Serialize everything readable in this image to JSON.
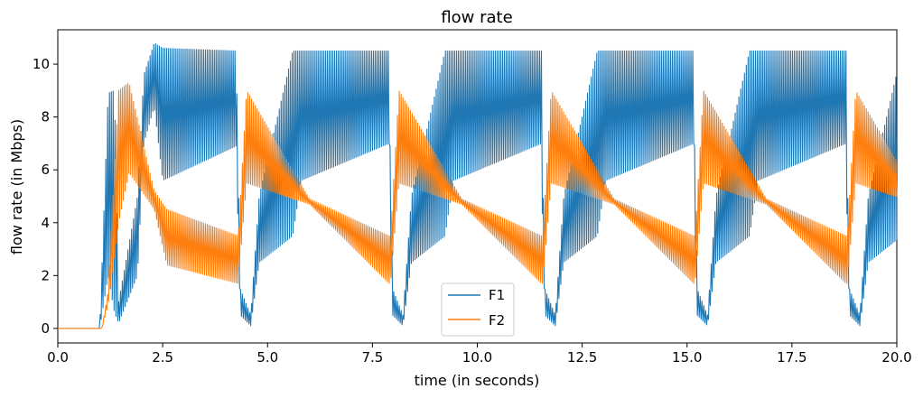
{
  "chart_data": {
    "type": "line",
    "title": "flow rate",
    "xlabel": "time (in seconds)",
    "ylabel": "flow rate (in Mbps)",
    "xlim": [
      0,
      20
    ],
    "ylim": [
      -0.55,
      11.3
    ],
    "xticks": [
      0,
      2.5,
      5,
      7.5,
      10,
      12.5,
      15,
      17.5,
      20
    ],
    "xtick_labels": [
      "0.0",
      "2.5",
      "5.0",
      "7.5",
      "10.0",
      "12.5",
      "15.0",
      "17.5",
      "20.0"
    ],
    "yticks": [
      0,
      2,
      4,
      6,
      8,
      10
    ],
    "ytick_labels": [
      "0",
      "2",
      "4",
      "6",
      "8",
      "10"
    ],
    "grid": false,
    "legend_position": "lower-center",
    "period_s": 3.63,
    "series": [
      {
        "name": "F1",
        "color": "#1f77b4",
        "description": "oscillating flow with repeating ~3.6 s cycle",
        "envelope": [
          {
            "t": 0.0,
            "low": 0.0,
            "high": 0.0
          },
          {
            "t": 1.0,
            "low": 0.0,
            "high": 0.0
          },
          {
            "t": 1.2,
            "low": 2.0,
            "high": 8.9
          },
          {
            "t": 1.35,
            "low": 0.6,
            "high": 9.0
          },
          {
            "t": 1.45,
            "low": 0.2,
            "high": 1.0
          },
          {
            "t": 1.9,
            "low": 2.0,
            "high": 5.0
          },
          {
            "t": 2.05,
            "low": 7.0,
            "high": 9.6
          },
          {
            "t": 2.3,
            "low": 8.4,
            "high": 10.8
          },
          {
            "t": 2.5,
            "low": 5.6,
            "high": 10.6
          },
          {
            "t": 4.25,
            "low": 6.9,
            "high": 10.5
          },
          {
            "t": 4.35,
            "low": 0.5,
            "high": 1.5
          },
          {
            "t": 4.6,
            "low": 0.1,
            "high": 0.5
          },
          {
            "t": 4.8,
            "low": 2.5,
            "high": 5.0
          },
          {
            "t": 5.6,
            "low": 3.5,
            "high": 10.5
          },
          {
            "t": 5.8,
            "low": 5.6,
            "high": 10.5
          },
          {
            "t": 7.9,
            "low": 7.0,
            "high": 10.5
          }
        ]
      },
      {
        "name": "F2",
        "color": "#ff7f0e",
        "description": "oscillating flow, out of phase with F1",
        "envelope": [
          {
            "t": 0.0,
            "low": 0.0,
            "high": 0.0
          },
          {
            "t": 1.05,
            "low": 0.0,
            "high": 0.0
          },
          {
            "t": 1.2,
            "low": 0.9,
            "high": 1.4
          },
          {
            "t": 1.45,
            "low": 4.0,
            "high": 9.0
          },
          {
            "t": 1.7,
            "low": 5.9,
            "high": 9.3
          },
          {
            "t": 2.3,
            "low": 4.5,
            "high": 5.2
          },
          {
            "t": 2.6,
            "low": 2.4,
            "high": 4.5
          },
          {
            "t": 4.3,
            "low": 1.7,
            "high": 3.5
          },
          {
            "t": 4.5,
            "low": 5.5,
            "high": 9.0
          },
          {
            "t": 6.0,
            "low": 4.7,
            "high": 4.9
          },
          {
            "t": 7.9,
            "low": 1.7,
            "high": 3.5
          }
        ]
      }
    ]
  }
}
